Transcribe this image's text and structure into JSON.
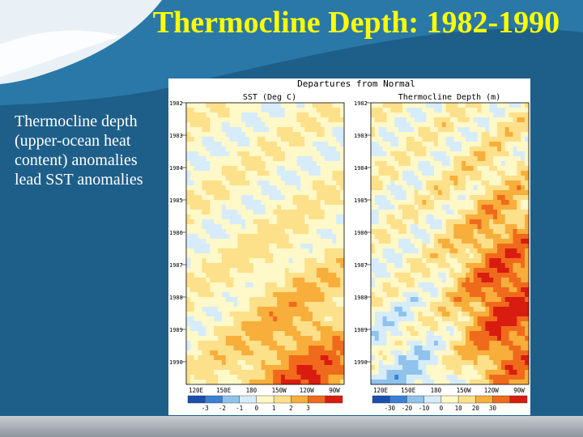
{
  "slide": {
    "title": "Thermocline Depth: 1982-1990",
    "body": "Thermocline depth (upper-ocean heat content) anomalies lead SST anomalies"
  },
  "figure": {
    "heading": "Departures from Normal",
    "panels": [
      {
        "label": "SST (Deg C)",
        "years": [
          "1982",
          "1983",
          "1984",
          "1985",
          "1986",
          "1987",
          "1988",
          "1989",
          "1990"
        ],
        "longitudes": [
          "120E",
          "150E",
          "180",
          "150W",
          "120W",
          "90W"
        ],
        "scale_labels": [
          "-3",
          "-2",
          "-1",
          "0",
          "1",
          "2",
          "3"
        ]
      },
      {
        "label": "Thermocline Depth (m)",
        "years": [
          "1982",
          "1983",
          "1984",
          "1985",
          "1986",
          "1987",
          "1988",
          "1989",
          "1990"
        ],
        "longitudes": [
          "120E",
          "150E",
          "180",
          "150W",
          "120W",
          "90W"
        ],
        "scale_labels": [
          "-30",
          "-20",
          "-10",
          "0",
          "10",
          "20",
          "30"
        ]
      }
    ],
    "colors": {
      "neg3": "#1a4fb0",
      "neg2": "#3b7fd6",
      "neg1": "#8fc3ec",
      "neg0": "#d6ecfa",
      "pos0": "#fff8c8",
      "pos1": "#fde08a",
      "pos2": "#f8ae3a",
      "pos3": "#f06a1c",
      "pos4": "#d91c10"
    }
  }
}
